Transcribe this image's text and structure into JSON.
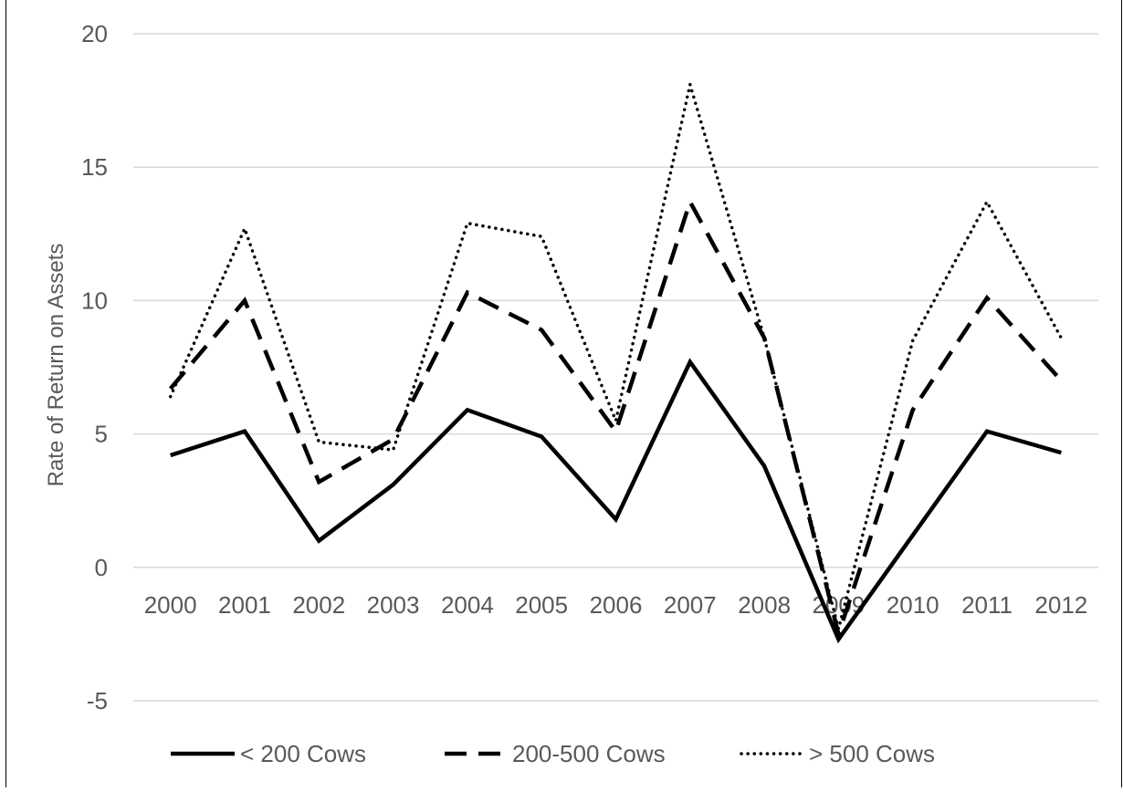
{
  "chart_data": {
    "type": "line",
    "title": "",
    "xlabel": "",
    "ylabel": "Rate of Return on Assets",
    "ylim": [
      -5,
      20
    ],
    "yticks": [
      -5,
      0,
      5,
      10,
      15,
      20
    ],
    "categories": [
      "2000",
      "2001",
      "2002",
      "2003",
      "2004",
      "2005",
      "2006",
      "2007",
      "2008",
      "2009",
      "2010",
      "2011",
      "2012"
    ],
    "grid": "horizontal",
    "legend_position": "bottom",
    "series": [
      {
        "name": "< 200 Cows",
        "style": "solid",
        "values": [
          4.2,
          5.1,
          1.0,
          3.1,
          5.9,
          4.9,
          1.8,
          7.7,
          3.8,
          -2.7,
          1.2,
          5.1,
          4.3
        ]
      },
      {
        "name": "200-500 Cows",
        "style": "dashed",
        "values": [
          6.7,
          10.0,
          3.2,
          4.8,
          10.3,
          8.9,
          5.1,
          13.7,
          8.6,
          -2.5,
          5.9,
          10.1,
          7.0
        ]
      },
      {
        "name": "> 500 Cows",
        "style": "dotted",
        "values": [
          6.4,
          12.7,
          4.7,
          4.4,
          12.9,
          12.4,
          5.5,
          18.1,
          8.6,
          -2.3,
          8.5,
          13.7,
          8.6
        ]
      }
    ],
    "colors": {
      "line": "#000000",
      "grid": "#d9d9d9",
      "tick_text": "#595959"
    }
  }
}
